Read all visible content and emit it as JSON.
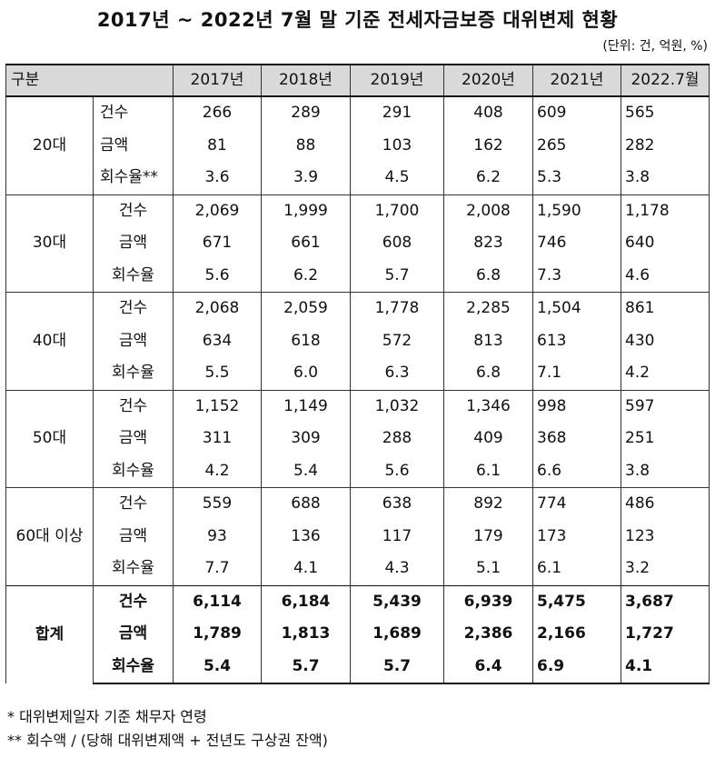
{
  "title": "2017년 ~ 2022년 7월 말 기준 전세자금보증 대위변제 현황",
  "unit": "(단위: 건, 억원, %)",
  "header": {
    "group_label": "구분",
    "years": [
      "2017년",
      "2018년",
      "2019년",
      "2020년",
      "2021년",
      "2022.7월"
    ]
  },
  "groups": [
    {
      "age": "20대",
      "rows": [
        {
          "metric": "건수",
          "values": [
            "266",
            "289",
            "291",
            "408",
            "609",
            "565"
          ]
        },
        {
          "metric": "금액",
          "values": [
            "81",
            "88",
            "103",
            "162",
            "265",
            "282"
          ]
        },
        {
          "metric": "회수율**",
          "values": [
            "3.6",
            "3.9",
            "4.5",
            "6.2",
            "5.3",
            "3.8"
          ]
        }
      ]
    },
    {
      "age": "30대",
      "rows": [
        {
          "metric": "건수",
          "values": [
            "2,069",
            "1,999",
            "1,700",
            "2,008",
            "1,590",
            "1,178"
          ]
        },
        {
          "metric": "금액",
          "values": [
            "671",
            "661",
            "608",
            "823",
            "746",
            "640"
          ]
        },
        {
          "metric": "회수율",
          "values": [
            "5.6",
            "6.2",
            "5.7",
            "6.8",
            "7.3",
            "4.6"
          ]
        }
      ]
    },
    {
      "age": "40대",
      "rows": [
        {
          "metric": "건수",
          "values": [
            "2,068",
            "2,059",
            "1,778",
            "2,285",
            "1,504",
            "861"
          ]
        },
        {
          "metric": "금액",
          "values": [
            "634",
            "618",
            "572",
            "813",
            "613",
            "430"
          ]
        },
        {
          "metric": "회수율",
          "values": [
            "5.5",
            "6.0",
            "6.3",
            "6.8",
            "7.1",
            "4.2"
          ]
        }
      ]
    },
    {
      "age": "50대",
      "rows": [
        {
          "metric": "건수",
          "values": [
            "1,152",
            "1,149",
            "1,032",
            "1,346",
            "998",
            "597"
          ]
        },
        {
          "metric": "금액",
          "values": [
            "311",
            "309",
            "288",
            "409",
            "368",
            "251"
          ]
        },
        {
          "metric": "회수율",
          "values": [
            "4.2",
            "5.4",
            "5.6",
            "6.1",
            "6.6",
            "3.8"
          ]
        }
      ]
    },
    {
      "age": "60대 이상",
      "rows": [
        {
          "metric": "건수",
          "values": [
            "559",
            "688",
            "638",
            "892",
            "774",
            "486"
          ]
        },
        {
          "metric": "금액",
          "values": [
            "93",
            "136",
            "117",
            "179",
            "173",
            "123"
          ]
        },
        {
          "metric": "회수율",
          "values": [
            "7.7",
            "4.1",
            "4.3",
            "5.1",
            "6.1",
            "3.2"
          ]
        }
      ]
    }
  ],
  "total": {
    "age": "합계",
    "rows": [
      {
        "metric": "건수",
        "values": [
          "6,114",
          "6,184",
          "5,439",
          "6,939",
          "5,475",
          "3,687"
        ]
      },
      {
        "metric": "금액",
        "values": [
          "1,789",
          "1,813",
          "1,689",
          "2,386",
          "2,166",
          "1,727"
        ]
      },
      {
        "metric": "회수율",
        "values": [
          "5.4",
          "5.7",
          "5.7",
          "6.4",
          "6.9",
          "4.1"
        ]
      }
    ]
  },
  "notes": [
    "* 대위변제일자 기준 채무자 연령",
    "** 회수액 / (당해 대위변제액 + 전년도 구상권 잔액)"
  ]
}
